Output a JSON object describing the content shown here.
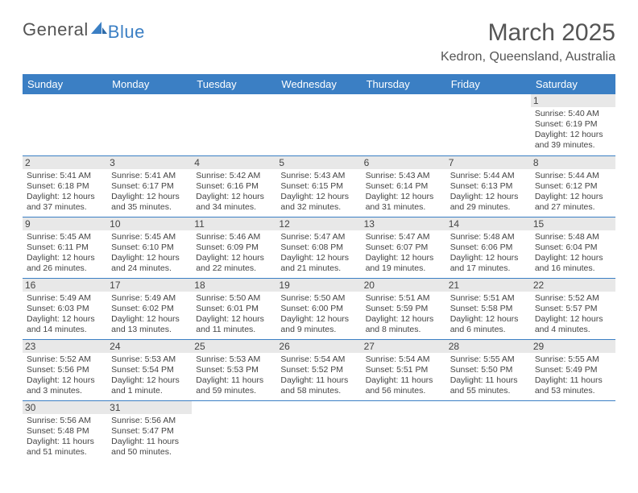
{
  "logo": {
    "general": "General",
    "blue": "Blue"
  },
  "title": "March 2025",
  "location": "Kedron, Queensland, Australia",
  "colors": {
    "header_bg": "#3b7fc4",
    "header_fg": "#ffffff",
    "daynum_bg": "#e8e8e8",
    "border": "#3b7fc4",
    "text": "#444444"
  },
  "weekdays": [
    "Sunday",
    "Monday",
    "Tuesday",
    "Wednesday",
    "Thursday",
    "Friday",
    "Saturday"
  ],
  "weeks": [
    [
      null,
      null,
      null,
      null,
      null,
      null,
      {
        "n": "1",
        "sr": "Sunrise: 5:40 AM",
        "ss": "Sunset: 6:19 PM",
        "dl": "Daylight: 12 hours and 39 minutes."
      }
    ],
    [
      {
        "n": "2",
        "sr": "Sunrise: 5:41 AM",
        "ss": "Sunset: 6:18 PM",
        "dl": "Daylight: 12 hours and 37 minutes."
      },
      {
        "n": "3",
        "sr": "Sunrise: 5:41 AM",
        "ss": "Sunset: 6:17 PM",
        "dl": "Daylight: 12 hours and 35 minutes."
      },
      {
        "n": "4",
        "sr": "Sunrise: 5:42 AM",
        "ss": "Sunset: 6:16 PM",
        "dl": "Daylight: 12 hours and 34 minutes."
      },
      {
        "n": "5",
        "sr": "Sunrise: 5:43 AM",
        "ss": "Sunset: 6:15 PM",
        "dl": "Daylight: 12 hours and 32 minutes."
      },
      {
        "n": "6",
        "sr": "Sunrise: 5:43 AM",
        "ss": "Sunset: 6:14 PM",
        "dl": "Daylight: 12 hours and 31 minutes."
      },
      {
        "n": "7",
        "sr": "Sunrise: 5:44 AM",
        "ss": "Sunset: 6:13 PM",
        "dl": "Daylight: 12 hours and 29 minutes."
      },
      {
        "n": "8",
        "sr": "Sunrise: 5:44 AM",
        "ss": "Sunset: 6:12 PM",
        "dl": "Daylight: 12 hours and 27 minutes."
      }
    ],
    [
      {
        "n": "9",
        "sr": "Sunrise: 5:45 AM",
        "ss": "Sunset: 6:11 PM",
        "dl": "Daylight: 12 hours and 26 minutes."
      },
      {
        "n": "10",
        "sr": "Sunrise: 5:45 AM",
        "ss": "Sunset: 6:10 PM",
        "dl": "Daylight: 12 hours and 24 minutes."
      },
      {
        "n": "11",
        "sr": "Sunrise: 5:46 AM",
        "ss": "Sunset: 6:09 PM",
        "dl": "Daylight: 12 hours and 22 minutes."
      },
      {
        "n": "12",
        "sr": "Sunrise: 5:47 AM",
        "ss": "Sunset: 6:08 PM",
        "dl": "Daylight: 12 hours and 21 minutes."
      },
      {
        "n": "13",
        "sr": "Sunrise: 5:47 AM",
        "ss": "Sunset: 6:07 PM",
        "dl": "Daylight: 12 hours and 19 minutes."
      },
      {
        "n": "14",
        "sr": "Sunrise: 5:48 AM",
        "ss": "Sunset: 6:06 PM",
        "dl": "Daylight: 12 hours and 17 minutes."
      },
      {
        "n": "15",
        "sr": "Sunrise: 5:48 AM",
        "ss": "Sunset: 6:04 PM",
        "dl": "Daylight: 12 hours and 16 minutes."
      }
    ],
    [
      {
        "n": "16",
        "sr": "Sunrise: 5:49 AM",
        "ss": "Sunset: 6:03 PM",
        "dl": "Daylight: 12 hours and 14 minutes."
      },
      {
        "n": "17",
        "sr": "Sunrise: 5:49 AM",
        "ss": "Sunset: 6:02 PM",
        "dl": "Daylight: 12 hours and 13 minutes."
      },
      {
        "n": "18",
        "sr": "Sunrise: 5:50 AM",
        "ss": "Sunset: 6:01 PM",
        "dl": "Daylight: 12 hours and 11 minutes."
      },
      {
        "n": "19",
        "sr": "Sunrise: 5:50 AM",
        "ss": "Sunset: 6:00 PM",
        "dl": "Daylight: 12 hours and 9 minutes."
      },
      {
        "n": "20",
        "sr": "Sunrise: 5:51 AM",
        "ss": "Sunset: 5:59 PM",
        "dl": "Daylight: 12 hours and 8 minutes."
      },
      {
        "n": "21",
        "sr": "Sunrise: 5:51 AM",
        "ss": "Sunset: 5:58 PM",
        "dl": "Daylight: 12 hours and 6 minutes."
      },
      {
        "n": "22",
        "sr": "Sunrise: 5:52 AM",
        "ss": "Sunset: 5:57 PM",
        "dl": "Daylight: 12 hours and 4 minutes."
      }
    ],
    [
      {
        "n": "23",
        "sr": "Sunrise: 5:52 AM",
        "ss": "Sunset: 5:56 PM",
        "dl": "Daylight: 12 hours and 3 minutes."
      },
      {
        "n": "24",
        "sr": "Sunrise: 5:53 AM",
        "ss": "Sunset: 5:54 PM",
        "dl": "Daylight: 12 hours and 1 minute."
      },
      {
        "n": "25",
        "sr": "Sunrise: 5:53 AM",
        "ss": "Sunset: 5:53 PM",
        "dl": "Daylight: 11 hours and 59 minutes."
      },
      {
        "n": "26",
        "sr": "Sunrise: 5:54 AM",
        "ss": "Sunset: 5:52 PM",
        "dl": "Daylight: 11 hours and 58 minutes."
      },
      {
        "n": "27",
        "sr": "Sunrise: 5:54 AM",
        "ss": "Sunset: 5:51 PM",
        "dl": "Daylight: 11 hours and 56 minutes."
      },
      {
        "n": "28",
        "sr": "Sunrise: 5:55 AM",
        "ss": "Sunset: 5:50 PM",
        "dl": "Daylight: 11 hours and 55 minutes."
      },
      {
        "n": "29",
        "sr": "Sunrise: 5:55 AM",
        "ss": "Sunset: 5:49 PM",
        "dl": "Daylight: 11 hours and 53 minutes."
      }
    ],
    [
      {
        "n": "30",
        "sr": "Sunrise: 5:56 AM",
        "ss": "Sunset: 5:48 PM",
        "dl": "Daylight: 11 hours and 51 minutes."
      },
      {
        "n": "31",
        "sr": "Sunrise: 5:56 AM",
        "ss": "Sunset: 5:47 PM",
        "dl": "Daylight: 11 hours and 50 minutes."
      },
      null,
      null,
      null,
      null,
      null
    ]
  ]
}
